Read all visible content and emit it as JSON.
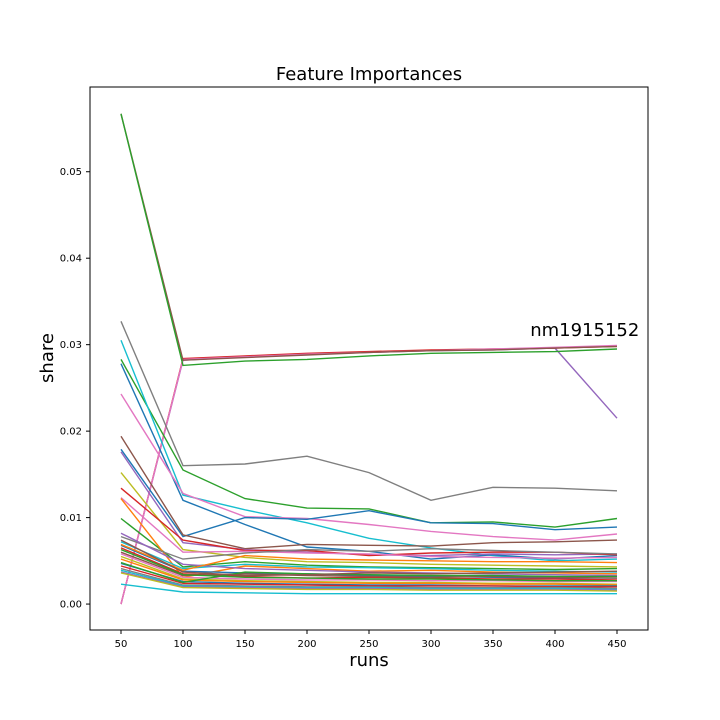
{
  "chart_data": {
    "type": "line",
    "title": "Feature Importances",
    "xlabel": "runs",
    "ylabel": "share",
    "x": [
      50,
      100,
      150,
      200,
      250,
      300,
      350,
      400,
      450
    ],
    "xlim": [
      25,
      475
    ],
    "ylim": [
      -0.003,
      0.0598
    ],
    "xticks": [
      50,
      100,
      150,
      200,
      250,
      300,
      350,
      400,
      450
    ],
    "yticks": [
      0.0,
      0.01,
      0.02,
      0.03,
      0.04,
      0.05
    ],
    "ytick_labels": [
      "0.00",
      "0.01",
      "0.02",
      "0.03",
      "0.04",
      "0.05"
    ],
    "grid": false,
    "annotation": {
      "text": "nm1915152",
      "x": 380,
      "y": 0.031
    },
    "series": [
      {
        "color": "#9467bd",
        "values": [
          0.0,
          0.0282,
          0.0286,
          0.0289,
          0.0291,
          0.0293,
          0.0294,
          0.0296,
          0.0215
        ]
      },
      {
        "color": "#d62728",
        "values": [
          0.0,
          0.0284,
          0.0287,
          0.029,
          0.0292,
          0.0294,
          0.0295,
          0.0296,
          0.0298
        ]
      },
      {
        "color": "#e377c2",
        "values": [
          0.0,
          0.0283,
          0.0286,
          0.0289,
          0.0291,
          0.0293,
          0.0295,
          0.0297,
          0.0299
        ]
      },
      {
        "color": "#8c564b",
        "values": [
          0.0567,
          0.0282,
          0.0285,
          0.0288,
          0.0291,
          0.0293,
          0.0294,
          0.0296,
          0.0298
        ]
      },
      {
        "color": "#2ca02c",
        "values": [
          0.0567,
          0.0276,
          0.0281,
          0.0283,
          0.0287,
          0.029,
          0.0291,
          0.0292,
          0.0295
        ]
      },
      {
        "color": "#7f7f7f",
        "values": [
          0.0327,
          0.016,
          0.0162,
          0.0171,
          0.0152,
          0.012,
          0.0135,
          0.0134,
          0.0131
        ]
      },
      {
        "color": "#2ca02c",
        "values": [
          0.0283,
          0.0155,
          0.0122,
          0.0111,
          0.011,
          0.0094,
          0.0095,
          0.0089,
          0.0099
        ]
      },
      {
        "color": "#17becf",
        "values": [
          0.0305,
          0.0126,
          0.0109,
          0.0094,
          0.0076,
          0.0065,
          0.0056,
          0.005,
          0.0052
        ]
      },
      {
        "color": "#1f77b4",
        "values": [
          0.0278,
          0.012,
          0.0092,
          0.0066,
          0.0061,
          0.0052,
          0.0057,
          0.0052,
          0.0056
        ]
      },
      {
        "color": "#e377c2",
        "values": [
          0.0243,
          0.0128,
          0.0101,
          0.0099,
          0.0092,
          0.0084,
          0.0078,
          0.0074,
          0.0081
        ]
      },
      {
        "color": "#1f77b4",
        "values": [
          0.0179,
          0.0078,
          0.01,
          0.0098,
          0.0108,
          0.0094,
          0.0093,
          0.0086,
          0.0089
        ]
      },
      {
        "color": "#8c564b",
        "values": [
          0.0194,
          0.008,
          0.0064,
          0.0069,
          0.0068,
          0.0067,
          0.0071,
          0.0072,
          0.0074
        ]
      },
      {
        "color": "#bcbd22",
        "values": [
          0.0152,
          0.0063,
          0.0054,
          0.0049,
          0.0048,
          0.0046,
          0.0045,
          0.0044,
          0.0043
        ]
      },
      {
        "color": "#9467bd",
        "values": [
          0.0176,
          0.0071,
          0.0063,
          0.006,
          0.0057,
          0.0056,
          0.0058,
          0.0057,
          0.0058
        ]
      },
      {
        "color": "#d62728",
        "values": [
          0.0134,
          0.0074,
          0.0062,
          0.0062,
          0.0056,
          0.0059,
          0.006,
          0.006,
          0.0057
        ]
      },
      {
        "color": "#e377c2",
        "values": [
          0.0123,
          0.006,
          0.0061,
          0.0059,
          0.0058,
          0.0055,
          0.0054,
          0.0053,
          0.0054
        ]
      },
      {
        "color": "#2ca02c",
        "values": [
          0.0099,
          0.0043,
          0.0049,
          0.0045,
          0.0043,
          0.0042,
          0.0041,
          0.004,
          0.0041
        ]
      },
      {
        "color": "#ff7f0e",
        "values": [
          0.0122,
          0.0031,
          0.0044,
          0.0041,
          0.0038,
          0.0039,
          0.0037,
          0.0036,
          0.0035
        ]
      },
      {
        "color": "#7f7f7f",
        "values": [
          0.0078,
          0.0052,
          0.0059,
          0.0063,
          0.0061,
          0.0064,
          0.0062,
          0.006,
          0.0058
        ]
      },
      {
        "color": "#17becf",
        "values": [
          0.0072,
          0.0041,
          0.0046,
          0.0043,
          0.0042,
          0.0041,
          0.0039,
          0.0038,
          0.0037
        ]
      },
      {
        "color": "#1f77b4",
        "values": [
          0.0068,
          0.0038,
          0.0036,
          0.0035,
          0.0033,
          0.0032,
          0.0031,
          0.003,
          0.003
        ]
      },
      {
        "color": "#d62728",
        "values": [
          0.0065,
          0.0035,
          0.0032,
          0.003,
          0.0031,
          0.003,
          0.0029,
          0.0029,
          0.0028
        ]
      },
      {
        "color": "#9467bd",
        "values": [
          0.0082,
          0.0046,
          0.0041,
          0.0039,
          0.0037,
          0.0036,
          0.0035,
          0.0034,
          0.0033
        ]
      },
      {
        "color": "#8c564b",
        "values": [
          0.006,
          0.0033,
          0.0035,
          0.0033,
          0.0032,
          0.0031,
          0.0032,
          0.0031,
          0.003
        ]
      },
      {
        "color": "#bcbd22",
        "values": [
          0.0055,
          0.0029,
          0.0027,
          0.0026,
          0.0025,
          0.0025,
          0.0024,
          0.0024,
          0.0023
        ]
      },
      {
        "color": "#e377c2",
        "values": [
          0.0058,
          0.0031,
          0.0029,
          0.0028,
          0.0028,
          0.0027,
          0.0027,
          0.0026,
          0.0026
        ]
      },
      {
        "color": "#2ca02c",
        "values": [
          0.0063,
          0.0034,
          0.0031,
          0.003,
          0.0029,
          0.0029,
          0.0028,
          0.0027,
          0.0027
        ]
      },
      {
        "color": "#ff7f0e",
        "values": [
          0.0052,
          0.0028,
          0.0026,
          0.0025,
          0.0024,
          0.0024,
          0.0023,
          0.0023,
          0.0022
        ]
      },
      {
        "color": "#1f77b4",
        "values": [
          0.0047,
          0.0026,
          0.0024,
          0.0023,
          0.0022,
          0.0022,
          0.0021,
          0.0021,
          0.0021
        ]
      },
      {
        "color": "#d62728",
        "values": [
          0.0044,
          0.0024,
          0.0023,
          0.0022,
          0.0021,
          0.0021,
          0.0021,
          0.002,
          0.002
        ]
      },
      {
        "color": "#7f7f7f",
        "values": [
          0.0041,
          0.0022,
          0.0021,
          0.002,
          0.002,
          0.0019,
          0.0019,
          0.0019,
          0.0018
        ]
      },
      {
        "color": "#17becf",
        "values": [
          0.0039,
          0.0021,
          0.002,
          0.0019,
          0.0019,
          0.0018,
          0.0018,
          0.0018,
          0.0017
        ]
      },
      {
        "color": "#9467bd",
        "values": [
          0.0037,
          0.002,
          0.0019,
          0.0018,
          0.0018,
          0.0017,
          0.0017,
          0.0017,
          0.0016
        ]
      },
      {
        "color": "#bcbd22",
        "values": [
          0.0036,
          0.0019,
          0.0018,
          0.0017,
          0.0017,
          0.0016,
          0.0016,
          0.0016,
          0.0015
        ]
      },
      {
        "color": "#17becf",
        "values": [
          0.0023,
          0.0014,
          0.0013,
          0.0012,
          0.0012,
          0.0012,
          0.0012,
          0.0012,
          0.0012
        ]
      },
      {
        "color": "#2ca02c",
        "values": [
          0.0048,
          0.0025,
          0.0037,
          0.0035,
          0.0034,
          0.0033,
          0.0033,
          0.0032,
          0.0032
        ]
      },
      {
        "color": "#ff7f0e",
        "values": [
          0.0069,
          0.0039,
          0.0056,
          0.0052,
          0.0051,
          0.005,
          0.0049,
          0.0049,
          0.0048
        ]
      },
      {
        "color": "#8c564b",
        "values": [
          0.0074,
          0.0037,
          0.0033,
          0.0034,
          0.0036,
          0.0035,
          0.0036,
          0.0037,
          0.0038
        ]
      }
    ]
  }
}
